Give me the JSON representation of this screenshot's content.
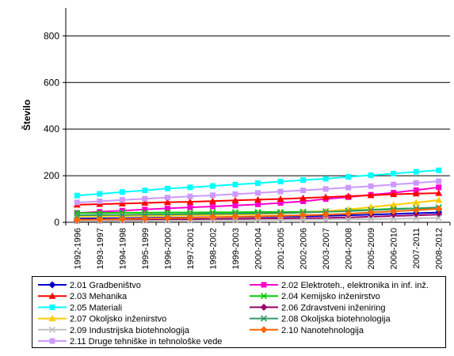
{
  "chart_data": {
    "type": "line",
    "title": "",
    "xlabel": "",
    "ylabel": "Število",
    "ylim": [
      0,
      800
    ],
    "yticks": [
      0,
      200,
      400,
      600,
      800
    ],
    "grid": "horizontal",
    "legend_position": "bottom",
    "categories": [
      "1992-1996",
      "1993-1997",
      "1994-1998",
      "1995-1999",
      "1996-2000",
      "1997-2001",
      "1998-2002",
      "1999-2003",
      "2000-2004",
      "2001-2005",
      "2002-2006",
      "2003-2007",
      "2004-2008",
      "2005-2009",
      "2006-2010",
      "2007-2011",
      "2008-2012"
    ],
    "series": [
      {
        "name": "2.01 Gradbeništvo",
        "color": "#0000cc",
        "marker": "diamond",
        "values": [
          16,
          17,
          18,
          19,
          20,
          21,
          22,
          23,
          24,
          25,
          26,
          28,
          30,
          33,
          36,
          39,
          42
        ]
      },
      {
        "name": "2.02 Elektroteh., elektronika in inf. inž.",
        "color": "#ff00cc",
        "marker": "square",
        "values": [
          40,
          45,
          50,
          55,
          60,
          64,
          68,
          72,
          77,
          83,
          90,
          100,
          108,
          118,
          127,
          138,
          150
        ]
      },
      {
        "name": "2.03 Mehanika",
        "color": "#ff0000",
        "marker": "triangle",
        "values": [
          75,
          78,
          80,
          83,
          86,
          88,
          91,
          94,
          97,
          100,
          104,
          108,
          112,
          116,
          120,
          123,
          125
        ]
      },
      {
        "name": "2.04 Kemijsko inženirstvo",
        "color": "#00cc00",
        "marker": "x",
        "values": [
          40,
          40,
          41,
          41,
          42,
          42,
          43,
          43,
          44,
          44,
          45,
          47,
          50,
          54,
          58,
          60,
          62
        ]
      },
      {
        "name": "2.05 Materiali",
        "color": "#00ffff",
        "marker": "square",
        "values": [
          115,
          122,
          130,
          137,
          145,
          150,
          156,
          162,
          168,
          175,
          181,
          187,
          195,
          202,
          209,
          217,
          223
        ]
      },
      {
        "name": "2.06 Zdravstveni inženiring",
        "color": "#990066",
        "marker": "diamond",
        "values": [
          8,
          9,
          10,
          11,
          12,
          13,
          14,
          15,
          16,
          17,
          18,
          19,
          21,
          24,
          27,
          30,
          33
        ]
      },
      {
        "name": "2.07 Okoljsko inženirstvo",
        "color": "#ffcc00",
        "marker": "triangle",
        "values": [
          25,
          26,
          27,
          28,
          29,
          30,
          31,
          33,
          35,
          38,
          42,
          48,
          55,
          65,
          75,
          85,
          95
        ]
      },
      {
        "name": "2.08 Okoljska biotehnologija",
        "color": "#339966",
        "marker": "x",
        "values": [
          30,
          31,
          32,
          33,
          34,
          35,
          36,
          37,
          38,
          40,
          42,
          45,
          48,
          52,
          56,
          60,
          64
        ]
      },
      {
        "name": "2.09 Industrijska biotehnologija",
        "color": "#c0c0c0",
        "marker": "x",
        "values": [
          5,
          5,
          6,
          6,
          7,
          7,
          8,
          8,
          9,
          10,
          11,
          12,
          13,
          14,
          15,
          17,
          19
        ]
      },
      {
        "name": "2.10 Nanotehnologija",
        "color": "#ff6600",
        "marker": "diamond",
        "values": [
          10,
          12,
          14,
          16,
          18,
          20,
          22,
          24,
          26,
          28,
          30,
          33,
          37,
          42,
          47,
          52,
          58
        ]
      },
      {
        "name": "2.11 Druge tehniške in tehnološke vede",
        "color": "#cc99ff",
        "marker": "square",
        "values": [
          85,
          90,
          96,
          101,
          106,
          111,
          116,
          121,
          126,
          132,
          137,
          143,
          149,
          155,
          162,
          169,
          176
        ]
      }
    ]
  }
}
